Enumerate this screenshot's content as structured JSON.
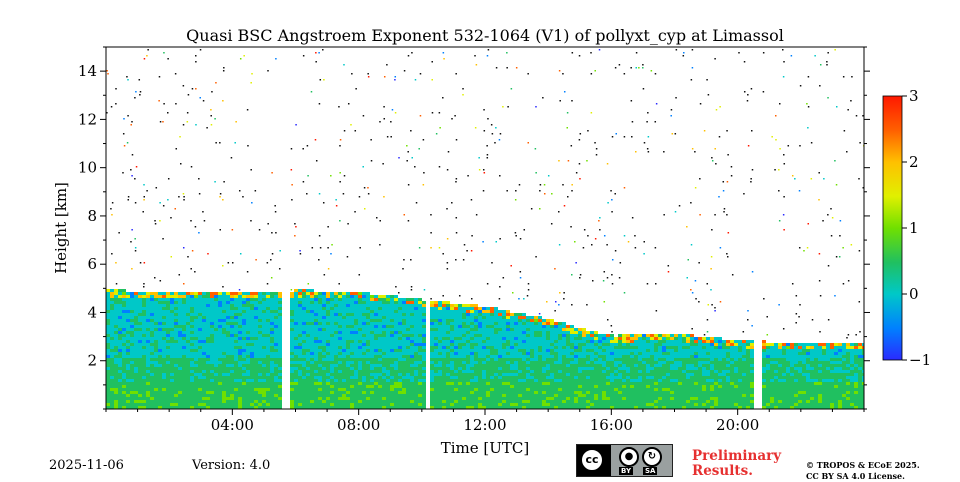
{
  "chart_data": {
    "type": "heatmap",
    "title": "Quasi BSC Angstroem Exponent 532-1064 (V1) of pollyxt_cyp at Limassol",
    "xlabel": "Time [UTC]",
    "ylabel": "Height [km]",
    "xlim_hours": [
      0,
      24
    ],
    "ylim_km": [
      0,
      15
    ],
    "x_ticks": [
      {
        "hour": 4,
        "label": "04:00"
      },
      {
        "hour": 8,
        "label": "08:00"
      },
      {
        "hour": 12,
        "label": "12:00"
      },
      {
        "hour": 16,
        "label": "16:00"
      },
      {
        "hour": 20,
        "label": "20:00"
      }
    ],
    "y_ticks": [
      {
        "value": 2,
        "label": "2"
      },
      {
        "value": 4,
        "label": "4"
      },
      {
        "value": 6,
        "label": "6"
      },
      {
        "value": 8,
        "label": "8"
      },
      {
        "value": 10,
        "label": "10"
      },
      {
        "value": 12,
        "label": "12"
      },
      {
        "value": 14,
        "label": "14"
      }
    ],
    "colorbar": {
      "min": -1,
      "max": 3,
      "ticks": [
        {
          "value": 3,
          "label": "3"
        },
        {
          "value": 2,
          "label": "2"
        },
        {
          "value": 1,
          "label": "1"
        },
        {
          "value": 0,
          "label": "0"
        },
        {
          "value": -1,
          "label": "−1"
        }
      ],
      "colormap": [
        "#2a2aff",
        "#0080ff",
        "#00c8c8",
        "#20c060",
        "#70e000",
        "#e0f000",
        "#ffc000",
        "#ff6000",
        "#ff1800"
      ]
    },
    "data_gaps_hours": [
      [
        5.55,
        5.75
      ],
      [
        10.05,
        10.25
      ],
      [
        20.5,
        20.65
      ]
    ],
    "boundary_layer_top_km": [
      {
        "hour": 0,
        "km": 5.0
      },
      {
        "hour": 2,
        "km": 4.9
      },
      {
        "hour": 4,
        "km": 4.9
      },
      {
        "hour": 5.5,
        "km": 4.9
      },
      {
        "hour": 6,
        "km": 5.0
      },
      {
        "hour": 8,
        "km": 4.9
      },
      {
        "hour": 10,
        "km": 4.6
      },
      {
        "hour": 12,
        "km": 4.3
      },
      {
        "hour": 14,
        "km": 3.8
      },
      {
        "hour": 15,
        "km": 3.4
      },
      {
        "hour": 16,
        "km": 3.1
      },
      {
        "hour": 18,
        "km": 3.2
      },
      {
        "hour": 20,
        "km": 2.9
      },
      {
        "hour": 22,
        "km": 2.8
      },
      {
        "hour": 24,
        "km": 2.8
      }
    ]
  },
  "footer": {
    "date": "2025-11-06",
    "version": "Version: 4.0",
    "preliminary_line1": "Preliminary",
    "preliminary_line2": "Results.",
    "copyright_line1": "© TROPOS & ECoE 2025.",
    "copyright_line2": "CC BY SA 4.0 License."
  },
  "license_badge": {
    "cc": "cc",
    "by": "BY",
    "sa": "SA"
  }
}
